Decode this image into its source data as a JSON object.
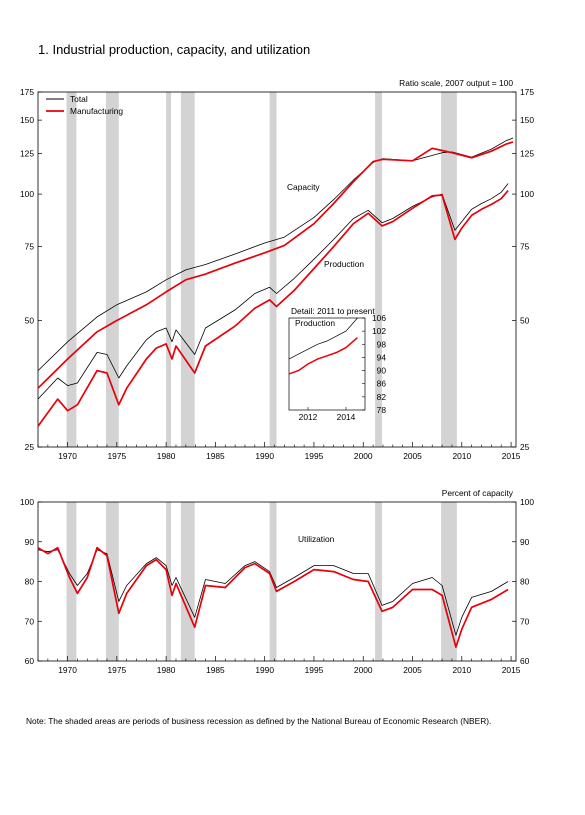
{
  "page": {
    "title": "1.  Industrial production, capacity, and utilization",
    "note": "Note: The shaded areas are periods of business recession as defined by the National Bureau of Economic Research (NBER)."
  },
  "colors": {
    "total": "#000000",
    "manufacturing": "#e8000b",
    "recession": "#d3d3d3"
  },
  "chart_data": [
    {
      "type": "line",
      "scale": "log",
      "note": "Ratio scale, 2007 output = 100",
      "xlim": [
        1967.0,
        2015.5
      ],
      "ylim": [
        25,
        175
      ],
      "yticks": [
        25,
        50,
        75,
        100,
        125,
        150,
        175
      ],
      "xticks": [
        1970,
        1975,
        1980,
        1985,
        1990,
        1995,
        2000,
        2005,
        2010,
        2015
      ],
      "grid": false,
      "legend": {
        "position": "top-left",
        "entries": [
          "Total",
          "Manufacturing"
        ]
      },
      "recessions": [
        [
          1969.9,
          1970.9
        ],
        [
          1973.9,
          1975.2
        ],
        [
          1980.0,
          1980.5
        ],
        [
          1981.5,
          1982.9
        ],
        [
          1990.5,
          1991.2
        ],
        [
          2001.2,
          2001.9
        ],
        [
          2007.9,
          2009.5
        ]
      ],
      "annotations": [
        "Capacity",
        "Production"
      ],
      "series": [
        {
          "name": "Total",
          "group": "Capacity",
          "points": [
            [
              1967,
              38
            ],
            [
              1970,
              44.5
            ],
            [
              1973,
              51
            ],
            [
              1975,
              54.5
            ],
            [
              1978,
              58.5
            ],
            [
              1980,
              62.5
            ],
            [
              1982,
              66
            ],
            [
              1984,
              68
            ],
            [
              1987,
              72
            ],
            [
              1990,
              76.5
            ],
            [
              1992,
              79
            ],
            [
              1995,
              88
            ],
            [
              1997,
              97
            ],
            [
              1999,
              108
            ],
            [
              2001,
              119
            ],
            [
              2002,
              121.5
            ],
            [
              2005,
              120
            ],
            [
              2008,
              125.5
            ],
            [
              2009,
              126
            ],
            [
              2011,
              122.5
            ],
            [
              2013,
              128
            ],
            [
              2014.5,
              134
            ],
            [
              2015.2,
              136
            ]
          ]
        },
        {
          "name": "Manufacturing",
          "group": "Capacity",
          "points": [
            [
              1967,
              34.5
            ],
            [
              1970,
              40.5
            ],
            [
              1973,
              47
            ],
            [
              1975,
              50
            ],
            [
              1978,
              54.5
            ],
            [
              1980,
              58.5
            ],
            [
              1982,
              62.5
            ],
            [
              1984,
              64.5
            ],
            [
              1987,
              68.5
            ],
            [
              1990,
              72.5
            ],
            [
              1992,
              75.5
            ],
            [
              1995,
              85
            ],
            [
              1997,
              95
            ],
            [
              1999,
              107
            ],
            [
              2001,
              119.5
            ],
            [
              2002,
              121
            ],
            [
              2005,
              120
            ],
            [
              2007,
              128.5
            ],
            [
              2008,
              127
            ],
            [
              2009,
              125.5
            ],
            [
              2011,
              122
            ],
            [
              2013,
              126.5
            ],
            [
              2014.5,
              131.5
            ],
            [
              2015.2,
              133
            ]
          ]
        },
        {
          "name": "Total",
          "group": "Production",
          "points": [
            [
              1967,
              32.5
            ],
            [
              1969,
              36.5
            ],
            [
              1970,
              35
            ],
            [
              1971,
              35.5
            ],
            [
              1973,
              42
            ],
            [
              1974,
              41.5
            ],
            [
              1975.2,
              36.5
            ],
            [
              1976,
              39
            ],
            [
              1978,
              45
            ],
            [
              1979,
              47
            ],
            [
              1980,
              48
            ],
            [
              1980.6,
              44.5
            ],
            [
              1981,
              47.5
            ],
            [
              1982.9,
              41.5
            ],
            [
              1984,
              48
            ],
            [
              1987,
              53
            ],
            [
              1989,
              58
            ],
            [
              1990.5,
              60
            ],
            [
              1991.2,
              58
            ],
            [
              1993,
              63
            ],
            [
              1995,
              70
            ],
            [
              1997,
              78
            ],
            [
              1999,
              87.5
            ],
            [
              2000.5,
              91.5
            ],
            [
              2001.9,
              85.5
            ],
            [
              2003,
              87.5
            ],
            [
              2005,
              93.5
            ],
            [
              2007,
              98.5
            ],
            [
              2008,
              100
            ],
            [
              2009.3,
              82
            ],
            [
              2010,
              86
            ],
            [
              2011,
              92
            ],
            [
              2012,
              95
            ],
            [
              2013,
              97.5
            ],
            [
              2014,
              101
            ],
            [
              2014.7,
              106
            ]
          ]
        },
        {
          "name": "Manufacturing",
          "group": "Production",
          "points": [
            [
              1967,
              28
            ],
            [
              1969,
              32.5
            ],
            [
              1970,
              30.5
            ],
            [
              1971,
              31.5
            ],
            [
              1973,
              38
            ],
            [
              1974,
              37.5
            ],
            [
              1975.2,
              31.5
            ],
            [
              1976,
              34.5
            ],
            [
              1978,
              40.5
            ],
            [
              1979,
              43
            ],
            [
              1980,
              44
            ],
            [
              1980.6,
              40.5
            ],
            [
              1981,
              43.5
            ],
            [
              1982.9,
              37.5
            ],
            [
              1984,
              43.5
            ],
            [
              1987,
              48.5
            ],
            [
              1989,
              53.5
            ],
            [
              1990.5,
              56
            ],
            [
              1991.2,
              54
            ],
            [
              1993,
              59
            ],
            [
              1995,
              66.5
            ],
            [
              1997,
              75
            ],
            [
              1999,
              85
            ],
            [
              2000.5,
              90
            ],
            [
              2001.9,
              84
            ],
            [
              2003,
              86
            ],
            [
              2005,
              92.5
            ],
            [
              2007,
              99
            ],
            [
              2008,
              99.5
            ],
            [
              2009.3,
              78
            ],
            [
              2010,
              83
            ],
            [
              2011,
              89
            ],
            [
              2012,
              92
            ],
            [
              2013,
              94.5
            ],
            [
              2014,
              97.5
            ],
            [
              2014.7,
              102
            ]
          ]
        }
      ],
      "inset": {
        "title": "Detail: 2011 to present",
        "label": "Production",
        "xlim": [
          2011.0,
          2015.0
        ],
        "ylim": [
          78,
          106
        ],
        "yticks": [
          78,
          82,
          86,
          90,
          94,
          98,
          102,
          106
        ],
        "xticks": [
          2012,
          2014
        ],
        "series": [
          {
            "name": "Total",
            "points": [
              [
                2011.0,
                93.5
              ],
              [
                2011.5,
                95
              ],
              [
                2012,
                96.5
              ],
              [
                2012.5,
                98
              ],
              [
                2013,
                99
              ],
              [
                2013.5,
                100.5
              ],
              [
                2014,
                102
              ],
              [
                2014.3,
                104
              ],
              [
                2014.6,
                106
              ]
            ]
          },
          {
            "name": "Manufacturing",
            "points": [
              [
                2011.0,
                89
              ],
              [
                2011.5,
                90
              ],
              [
                2012,
                92
              ],
              [
                2012.5,
                93.5
              ],
              [
                2013,
                94.5
              ],
              [
                2013.5,
                95.5
              ],
              [
                2014,
                97
              ],
              [
                2014.3,
                98.5
              ],
              [
                2014.6,
                100
              ]
            ]
          }
        ]
      }
    },
    {
      "type": "line",
      "note": "Percent of capacity",
      "xlim": [
        1967.0,
        2015.5
      ],
      "ylim": [
        60,
        100
      ],
      "yticks": [
        60,
        70,
        80,
        90,
        100
      ],
      "xticks": [
        1970,
        1975,
        1980,
        1985,
        1990,
        1995,
        2000,
        2005,
        2010,
        2015
      ],
      "grid": false,
      "recessions": [
        [
          1969.9,
          1970.9
        ],
        [
          1973.9,
          1975.2
        ],
        [
          1980.0,
          1980.5
        ],
        [
          1981.5,
          1982.9
        ],
        [
          1990.5,
          1991.2
        ],
        [
          2001.2,
          2001.9
        ],
        [
          2007.9,
          2009.5
        ]
      ],
      "annotations": [
        "Utilization"
      ],
      "series": [
        {
          "name": "Total",
          "points": [
            [
              1967,
              88
            ],
            [
              1968,
              87.5
            ],
            [
              1969,
              88
            ],
            [
              1970.2,
              82
            ],
            [
              1971,
              79
            ],
            [
              1972,
              82
            ],
            [
              1973,
              88
            ],
            [
              1974,
              87
            ],
            [
              1975.2,
              75
            ],
            [
              1976,
              79
            ],
            [
              1978,
              84.5
            ],
            [
              1979,
              86
            ],
            [
              1980,
              84
            ],
            [
              1980.6,
              79
            ],
            [
              1981,
              81
            ],
            [
              1982.9,
              71
            ],
            [
              1984,
              80.5
            ],
            [
              1986,
              79.5
            ],
            [
              1988,
              84
            ],
            [
              1989,
              85
            ],
            [
              1990.5,
              82.5
            ],
            [
              1991.2,
              78.5
            ],
            [
              1993,
              81
            ],
            [
              1995,
              84
            ],
            [
              1997,
              84
            ],
            [
              1999,
              82
            ],
            [
              2000.5,
              82
            ],
            [
              2001.9,
              74
            ],
            [
              2003,
              75
            ],
            [
              2005,
              79.5
            ],
            [
              2007,
              81
            ],
            [
              2008,
              79
            ],
            [
              2009.4,
              66.5
            ],
            [
              2010,
              71
            ],
            [
              2011,
              76
            ],
            [
              2013,
              77.5
            ],
            [
              2014.7,
              80
            ]
          ]
        },
        {
          "name": "Manufacturing",
          "points": [
            [
              1967,
              88.5
            ],
            [
              1968,
              87
            ],
            [
              1969,
              88.5
            ],
            [
              1970.2,
              81
            ],
            [
              1971,
              77
            ],
            [
              1972,
              81
            ],
            [
              1973,
              88.5
            ],
            [
              1974,
              86.5
            ],
            [
              1975.2,
              72
            ],
            [
              1976,
              77
            ],
            [
              1978,
              84
            ],
            [
              1979,
              85.5
            ],
            [
              1980,
              83
            ],
            [
              1980.6,
              76.5
            ],
            [
              1981,
              79.5
            ],
            [
              1982.9,
              68.5
            ],
            [
              1984,
              79
            ],
            [
              1986,
              78.5
            ],
            [
              1988,
              83.5
            ],
            [
              1989,
              84.5
            ],
            [
              1990.5,
              82
            ],
            [
              1991.2,
              77.5
            ],
            [
              1993,
              80
            ],
            [
              1995,
              83
            ],
            [
              1997,
              82.5
            ],
            [
              1999,
              80.5
            ],
            [
              2000.5,
              80
            ],
            [
              2001.9,
              72.5
            ],
            [
              2003,
              73.5
            ],
            [
              2005,
              78
            ],
            [
              2007,
              78
            ],
            [
              2008,
              76.5
            ],
            [
              2009.4,
              63.5
            ],
            [
              2010,
              68
            ],
            [
              2011,
              73.5
            ],
            [
              2013,
              75.5
            ],
            [
              2014.7,
              78
            ]
          ]
        }
      ]
    }
  ]
}
